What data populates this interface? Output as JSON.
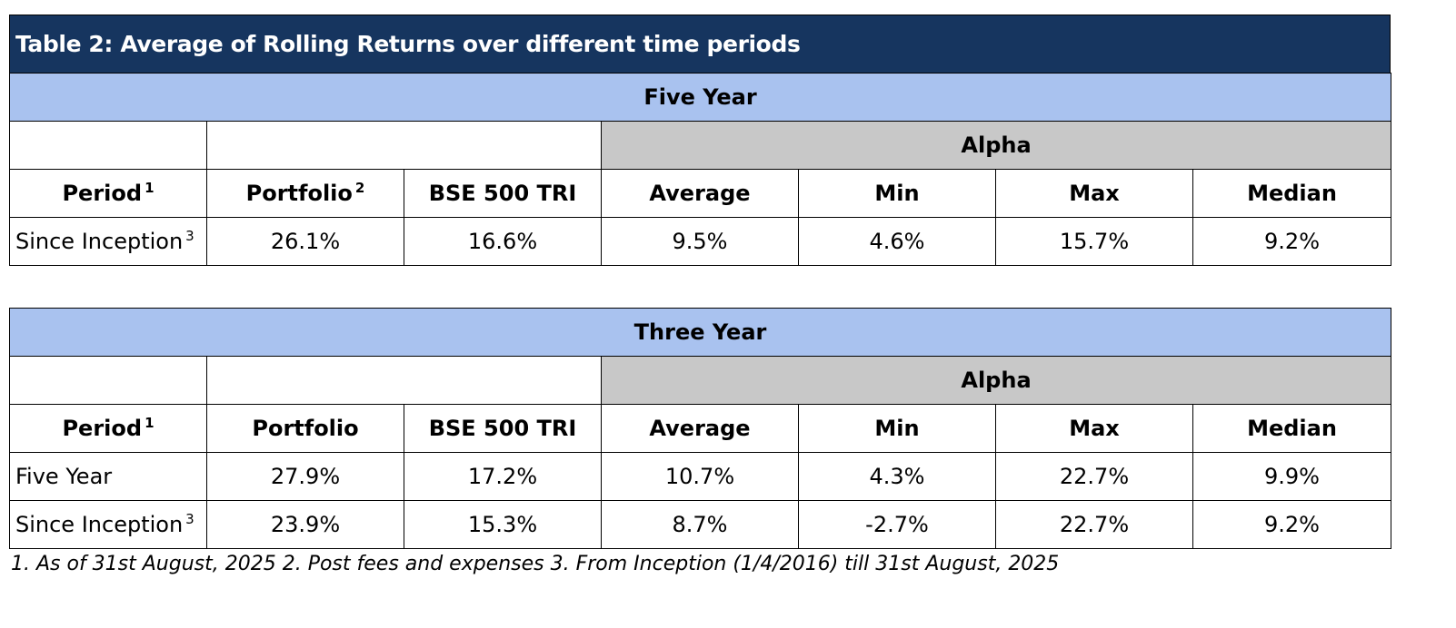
{
  "title": "Table 2: Average of Rolling Returns over different time periods",
  "tables": [
    {
      "section": "Five Year",
      "alpha_label": "Alpha",
      "headers": [
        {
          "label": "Period",
          "sup": "1"
        },
        {
          "label": "Portfolio",
          "sup": "2"
        },
        {
          "label": "BSE 500 TRI",
          "sup": ""
        },
        {
          "label": "Average",
          "sup": ""
        },
        {
          "label": "Min",
          "sup": ""
        },
        {
          "label": "Max",
          "sup": ""
        },
        {
          "label": "Median",
          "sup": ""
        }
      ],
      "rows": [
        {
          "period": "Since Inception",
          "sup": "3",
          "values": [
            "26.1%",
            "16.6%",
            "9.5%",
            "4.6%",
            "15.7%",
            "9.2%"
          ]
        }
      ]
    },
    {
      "section": "Three Year",
      "alpha_label": "Alpha",
      "headers": [
        {
          "label": "Period",
          "sup": "1"
        },
        {
          "label": "Portfolio",
          "sup": ""
        },
        {
          "label": "BSE 500 TRI",
          "sup": ""
        },
        {
          "label": "Average",
          "sup": ""
        },
        {
          "label": "Min",
          "sup": ""
        },
        {
          "label": "Max",
          "sup": ""
        },
        {
          "label": "Median",
          "sup": ""
        }
      ],
      "rows": [
        {
          "period": "Five Year",
          "sup": "",
          "values": [
            "27.9%",
            "17.2%",
            "10.7%",
            "4.3%",
            "22.7%",
            "9.9%"
          ]
        },
        {
          "period": "Since Inception",
          "sup": "3",
          "values": [
            "23.9%",
            "15.3%",
            "8.7%",
            "-2.7%",
            "22.7%",
            "9.2%"
          ]
        }
      ]
    }
  ],
  "footnote": "1. As of 31st August, 2025 2. Post fees and expenses 3. From Inception (1/4/2016) till 31st August, 2025"
}
